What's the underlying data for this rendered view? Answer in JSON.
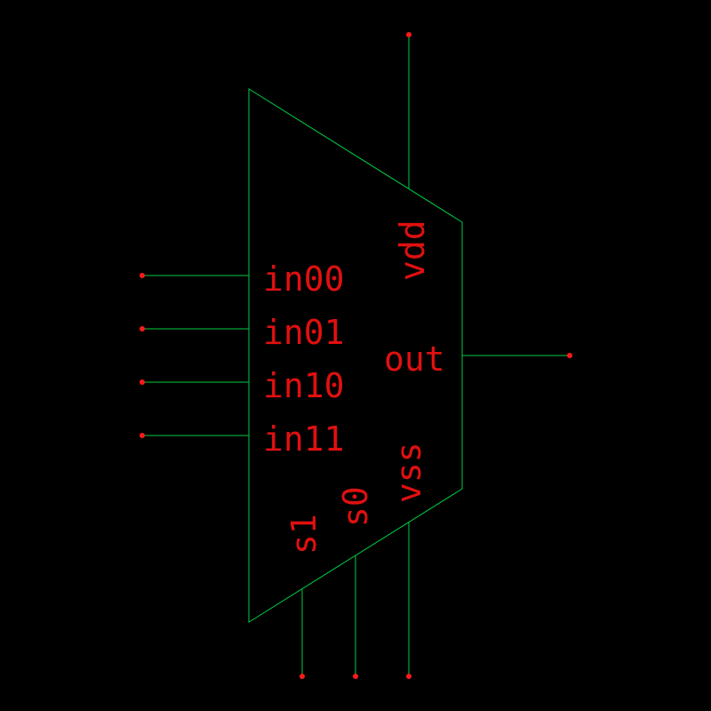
{
  "colors": {
    "background": "#000000",
    "wire": "#00cc44",
    "label": "#e01010",
    "pin": "#ff1a1a"
  },
  "symbol": {
    "type": "4-to-1 multiplexer",
    "pins": {
      "in00": "in00",
      "in01": "in01",
      "in10": "in10",
      "in11": "in11",
      "out": "out",
      "vdd": "vdd",
      "vss": "vss",
      "s0": "s0",
      "s1": "s1"
    }
  }
}
